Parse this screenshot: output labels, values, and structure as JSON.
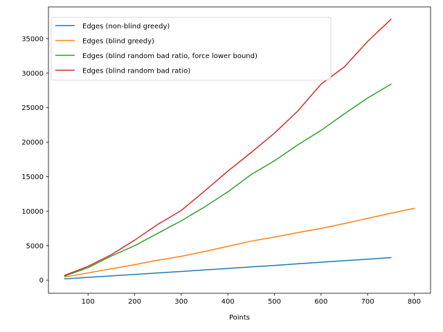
{
  "chart_data": {
    "type": "line",
    "title": "",
    "xlabel": "Points",
    "ylabel": "",
    "xlim": [
      15,
      835
    ],
    "ylim": [
      -1900,
      39600
    ],
    "xticks": [
      100,
      200,
      300,
      400,
      500,
      600,
      700,
      800
    ],
    "yticks": [
      0,
      5000,
      10000,
      15000,
      20000,
      25000,
      30000,
      35000
    ],
    "grid": false,
    "legend_position": "upper left",
    "series": [
      {
        "name": "Edges (non-blind greedy)",
        "color": "#1f77b4",
        "x": [
          50,
          100,
          150,
          200,
          250,
          300,
          350,
          400,
          450,
          500,
          550,
          600,
          650,
          700,
          750
        ],
        "y": [
          180,
          400,
          620,
          830,
          1040,
          1260,
          1480,
          1700,
          1920,
          2140,
          2370,
          2600,
          2820,
          3040,
          3270
        ]
      },
      {
        "name": "Edges (blind greedy)",
        "color": "#ff7f0e",
        "x": [
          50,
          100,
          150,
          200,
          250,
          300,
          350,
          400,
          450,
          500,
          550,
          600,
          650,
          700,
          750,
          800
        ],
        "y": [
          450,
          1050,
          1650,
          2250,
          2900,
          3450,
          4150,
          4900,
          5650,
          6250,
          6900,
          7500,
          8200,
          8950,
          9700,
          10400
        ]
      },
      {
        "name": "Edges (blind random bad ratio, force lower bound)",
        "color": "#2ca02c",
        "x": [
          50,
          100,
          150,
          200,
          250,
          300,
          350,
          400,
          450,
          500,
          550,
          600,
          650,
          700,
          750
        ],
        "y": [
          600,
          1800,
          3500,
          5000,
          6800,
          8600,
          10600,
          12800,
          15300,
          17300,
          19600,
          21700,
          24100,
          26400,
          28400
        ]
      },
      {
        "name": "Edges (blind random bad ratio)",
        "color": "#d62728",
        "x": [
          50,
          100,
          150,
          200,
          250,
          300,
          350,
          400,
          450,
          500,
          550,
          600,
          650,
          700,
          750
        ],
        "y": [
          700,
          2000,
          3700,
          5800,
          8100,
          10100,
          12900,
          15800,
          18500,
          21300,
          24500,
          28400,
          30900,
          34600,
          37800
        ]
      }
    ]
  }
}
